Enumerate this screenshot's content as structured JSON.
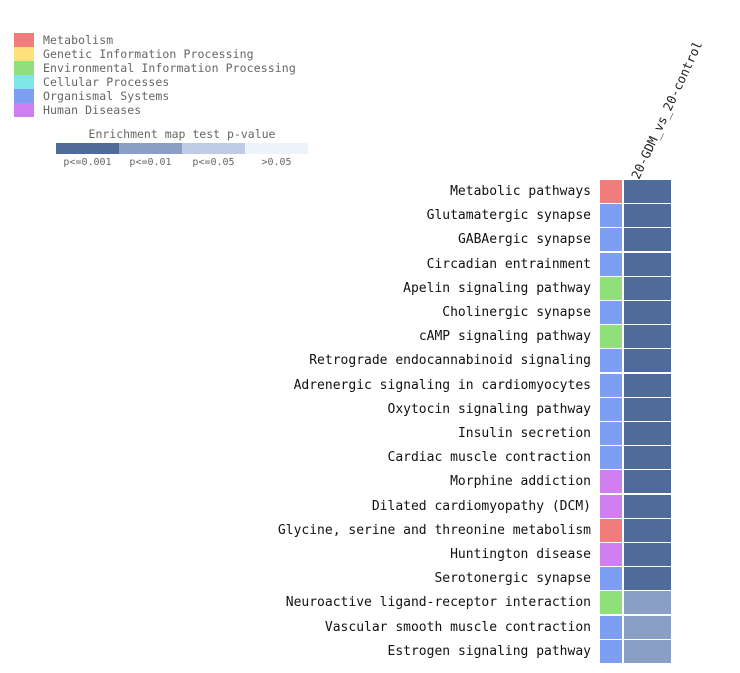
{
  "legend": {
    "items": [
      {
        "label": "Metabolism",
        "color": "#f07c7c"
      },
      {
        "label": "Genetic Information Processing",
        "color": "#fde17a"
      },
      {
        "label": "Environmental Information Processing",
        "color": "#8fe07a"
      },
      {
        "label": "Cellular Processes",
        "color": "#7fe6e6"
      },
      {
        "label": "Organismal Systems",
        "color": "#7d9ef2"
      },
      {
        "label": "Human Diseases",
        "color": "#d07ff0"
      }
    ]
  },
  "scale": {
    "title": "Enrichment map test p-value",
    "bins": [
      {
        "label": "p<=0.001",
        "color": "#4e6b9a"
      },
      {
        "label": "p<=0.01",
        "color": "#8a9fc4"
      },
      {
        "label": "p<=0.05",
        "color": "#c0cce6"
      },
      {
        "label": ">0.05",
        "color": "#eef2fb"
      }
    ]
  },
  "chart_data": {
    "type": "heatmap",
    "columns": [
      "20-GDM_vs_20-control"
    ],
    "rows": [
      {
        "pathway": "Metabolic pathways",
        "category": "Metabolism",
        "pvalue_bin": "p<=0.001"
      },
      {
        "pathway": "Glutamatergic synapse",
        "category": "Organismal Systems",
        "pvalue_bin": "p<=0.001"
      },
      {
        "pathway": "GABAergic synapse",
        "category": "Organismal Systems",
        "pvalue_bin": "p<=0.001"
      },
      {
        "pathway": "Circadian entrainment",
        "category": "Organismal Systems",
        "pvalue_bin": "p<=0.001"
      },
      {
        "pathway": "Apelin signaling pathway",
        "category": "Environmental Information Processing",
        "pvalue_bin": "p<=0.001"
      },
      {
        "pathway": "Cholinergic synapse",
        "category": "Organismal Systems",
        "pvalue_bin": "p<=0.001"
      },
      {
        "pathway": "cAMP signaling pathway",
        "category": "Environmental Information Processing",
        "pvalue_bin": "p<=0.001"
      },
      {
        "pathway": "Retrograde endocannabinoid signaling",
        "category": "Organismal Systems",
        "pvalue_bin": "p<=0.001"
      },
      {
        "pathway": "Adrenergic signaling in cardiomyocytes",
        "category": "Organismal Systems",
        "pvalue_bin": "p<=0.001"
      },
      {
        "pathway": "Oxytocin signaling pathway",
        "category": "Organismal Systems",
        "pvalue_bin": "p<=0.001"
      },
      {
        "pathway": "Insulin secretion",
        "category": "Organismal Systems",
        "pvalue_bin": "p<=0.001"
      },
      {
        "pathway": "Cardiac muscle contraction",
        "category": "Organismal Systems",
        "pvalue_bin": "p<=0.001"
      },
      {
        "pathway": "Morphine addiction",
        "category": "Human Diseases",
        "pvalue_bin": "p<=0.001"
      },
      {
        "pathway": "Dilated cardiomyopathy (DCM)",
        "category": "Human Diseases",
        "pvalue_bin": "p<=0.001"
      },
      {
        "pathway": "Glycine, serine and threonine metabolism",
        "category": "Metabolism",
        "pvalue_bin": "p<=0.001"
      },
      {
        "pathway": "Huntington disease",
        "category": "Human Diseases",
        "pvalue_bin": "p<=0.001"
      },
      {
        "pathway": "Serotonergic synapse",
        "category": "Organismal Systems",
        "pvalue_bin": "p<=0.001"
      },
      {
        "pathway": "Neuroactive ligand-receptor interaction",
        "category": "Environmental Information Processing",
        "pvalue_bin": "p<=0.01"
      },
      {
        "pathway": "Vascular smooth muscle contraction",
        "category": "Organismal Systems",
        "pvalue_bin": "p<=0.01"
      },
      {
        "pathway": "Estrogen signaling pathway",
        "category": "Organismal Systems",
        "pvalue_bin": "p<=0.01"
      }
    ]
  }
}
